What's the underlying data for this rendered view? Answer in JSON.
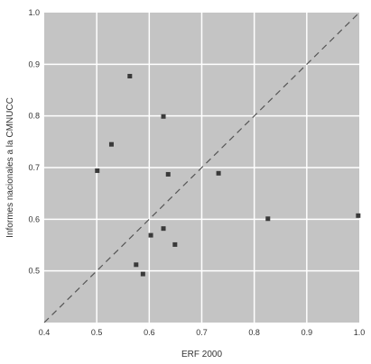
{
  "chart_data": {
    "type": "scatter",
    "xlabel": "ERF 2000",
    "ylabel": "Informes nacionales a la CMNUCC",
    "xlim": [
      0.4,
      1.0
    ],
    "ylim": [
      0.4,
      1.0
    ],
    "xticks": [
      0.4,
      0.5,
      0.6,
      0.7,
      0.8,
      0.9,
      1.0
    ],
    "yticks": [
      0.5,
      0.6,
      0.7,
      0.8,
      0.9,
      1.0
    ],
    "xtick_labels": [
      "0.4",
      "0.5",
      "0.6",
      "0.7",
      "0.8",
      "0.9",
      "1.0"
    ],
    "ytick_labels": [
      "0.5",
      "0.6",
      "0.7",
      "0.8",
      "0.9",
      "1.0"
    ],
    "grid": true,
    "reference_line": "y = x",
    "points": [
      {
        "x": 0.563,
        "y": 0.877
      },
      {
        "x": 0.627,
        "y": 0.799
      },
      {
        "x": 0.528,
        "y": 0.745
      },
      {
        "x": 0.501,
        "y": 0.694
      },
      {
        "x": 0.636,
        "y": 0.687
      },
      {
        "x": 0.732,
        "y": 0.689
      },
      {
        "x": 0.627,
        "y": 0.582
      },
      {
        "x": 0.603,
        "y": 0.569
      },
      {
        "x": 0.649,
        "y": 0.551
      },
      {
        "x": 0.575,
        "y": 0.512
      },
      {
        "x": 0.588,
        "y": 0.494
      },
      {
        "x": 0.826,
        "y": 0.601
      },
      {
        "x": 0.998,
        "y": 0.607
      }
    ],
    "colors": {
      "plot_background": "#c4c4c4",
      "grid": "#ffffff",
      "marker": "#3a3a3a",
      "reference_line": "#555555"
    }
  }
}
